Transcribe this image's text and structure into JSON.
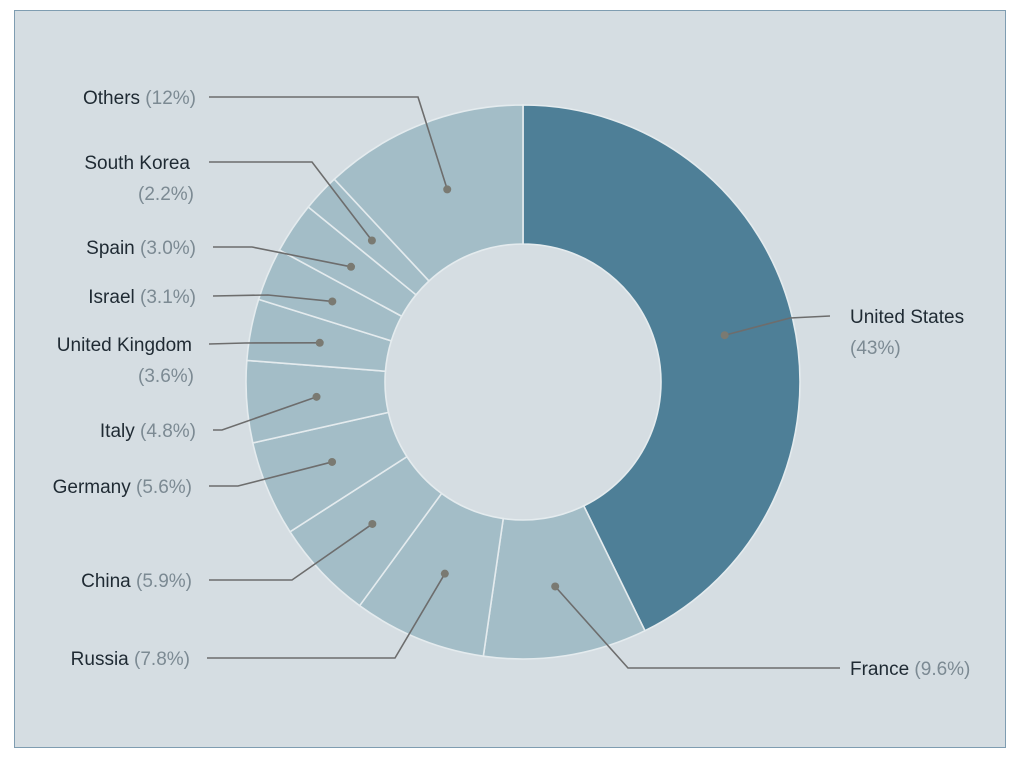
{
  "chart_data": {
    "type": "pie",
    "variant": "donut",
    "title": "",
    "start": "top",
    "direction": "clockwise",
    "colors": {
      "highlight": "#4e7f97",
      "slice": "#a3bdc7",
      "background": "#d5dde2",
      "leader": "#6d6d6d",
      "border": "#7f9db1"
    },
    "slices": [
      {
        "name": "United States",
        "pct_label": "(43%)",
        "value": 43.0,
        "highlight": true
      },
      {
        "name": "France",
        "pct_label": "(9.6%)",
        "value": 9.6
      },
      {
        "name": "Russia",
        "pct_label": "(7.8%)",
        "value": 7.8
      },
      {
        "name": "China",
        "pct_label": "(5.9%)",
        "value": 5.9
      },
      {
        "name": "Germany",
        "pct_label": "(5.6%)",
        "value": 5.6
      },
      {
        "name": "Italy",
        "pct_label": "(4.8%)",
        "value": 4.8
      },
      {
        "name": "United Kingdom",
        "pct_label": "(3.6%)",
        "value": 3.6
      },
      {
        "name": "Israel",
        "pct_label": "(3.1%)",
        "value": 3.1
      },
      {
        "name": "Spain",
        "pct_label": "(3.0%)",
        "value": 3.0
      },
      {
        "name": "South Korea",
        "pct_label": "(2.2%)",
        "value": 2.2
      },
      {
        "name": "Others",
        "pct_label": "(12%)",
        "value": 12.0
      }
    ]
  }
}
